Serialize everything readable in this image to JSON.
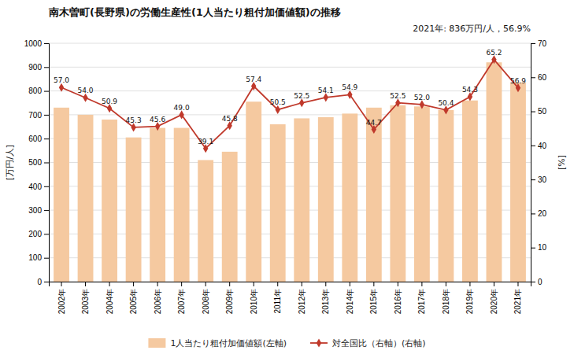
{
  "chart_data": {
    "type": "bar",
    "title": "南木曽町(長野県)の労働生産性(1人当たり粗付加価値額)の推移",
    "ylabel": "[万円/人]",
    "y2label": "[%]",
    "annotations": [
      "2021年: 836万円/人，56.9%"
    ],
    "categories": [
      "2002年",
      "2003年",
      "2004年",
      "2005年",
      "2006年",
      "2007年",
      "2008年",
      "2009年",
      "2010年",
      "2011年",
      "2012年",
      "2013年",
      "2014年",
      "2015年",
      "2016年",
      "2017年",
      "2018年",
      "2019年",
      "2020年",
      "2021年"
    ],
    "series": [
      {
        "name": "1人当たり粗付加価値額(左軸)",
        "type": "bar",
        "color": "#f5c9a0",
        "values": [
          730,
          700,
          680,
          605,
          645,
          645,
          510,
          545,
          755,
          660,
          685,
          690,
          705,
          730,
          740,
          735,
          720,
          760,
          920,
          836
        ]
      },
      {
        "name": "対全国比（右軸）(右軸)",
        "type": "line",
        "axis": "y2",
        "color": "#c0392b",
        "marker": "diamond",
        "data_labels": true,
        "values": [
          57.0,
          54.0,
          50.9,
          45.3,
          45.6,
          49.0,
          39.1,
          45.8,
          57.4,
          50.5,
          52.5,
          54.1,
          54.9,
          44.7,
          52.5,
          52.0,
          50.4,
          54.3,
          65.2,
          56.9
        ],
        "value_labels": [
          "57.0",
          "54.0",
          "50.9",
          "45.3",
          "45.6",
          "49.0",
          "39.1",
          "45.8",
          "57.4",
          "50.5",
          "52.5",
          "54.1",
          "54.9",
          "44.7",
          "52.5",
          "52.0",
          "50.4",
          "54.3",
          "65.2",
          "56.9"
        ]
      }
    ],
    "ylim": [
      0,
      1000
    ],
    "yticks": [
      0,
      100,
      200,
      300,
      400,
      500,
      600,
      700,
      800,
      900,
      1000
    ],
    "y2lim": [
      0,
      70
    ],
    "y2ticks": [
      0,
      10,
      20,
      30,
      40,
      50,
      60,
      70
    ],
    "grid": true,
    "legend": "bottom"
  }
}
